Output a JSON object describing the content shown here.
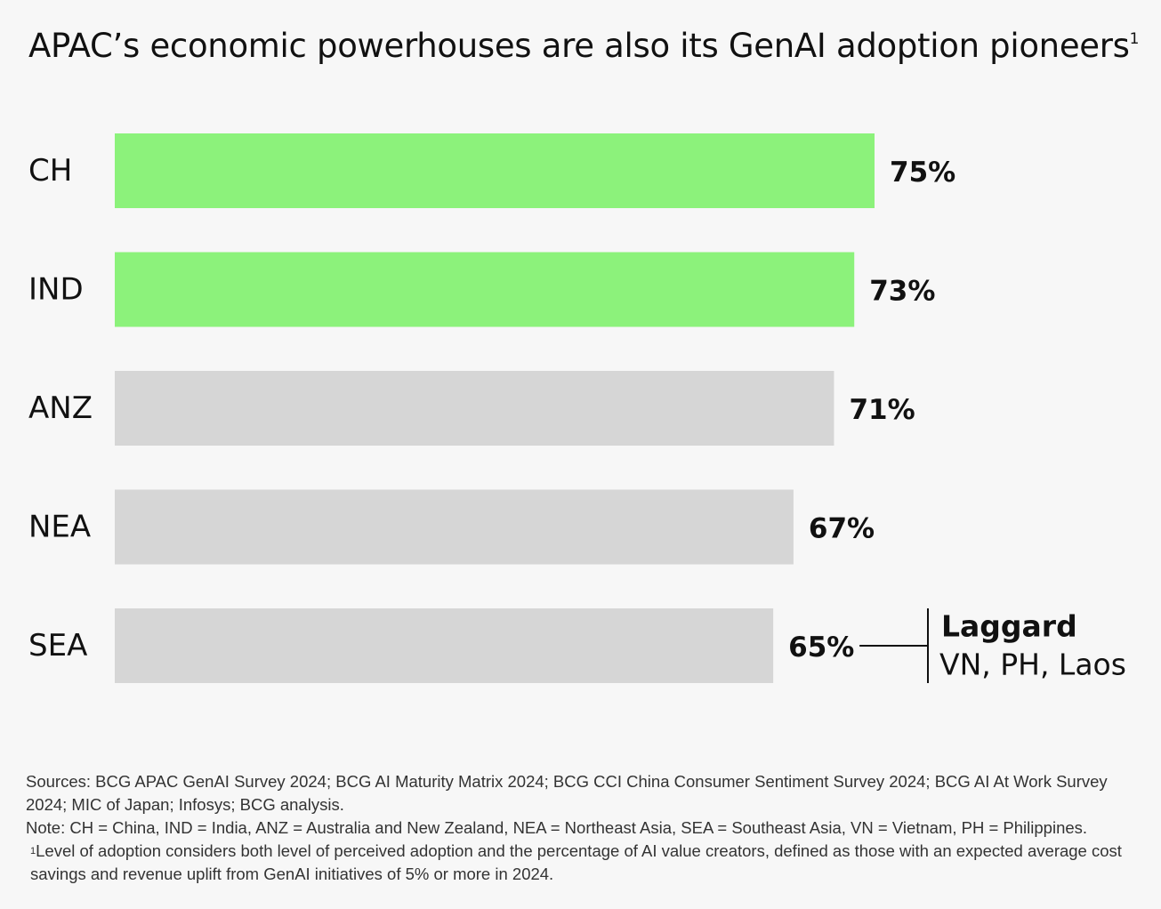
{
  "title": {
    "text": "APAC’s economic powerhouses are also its GenAI adoption pioneers",
    "footnote_ref": "1"
  },
  "chart_data": {
    "type": "bar",
    "orientation": "horizontal",
    "title": "APAC’s economic powerhouses are also its GenAI adoption pioneers",
    "categories": [
      "CH",
      "IND",
      "ANZ",
      "NEA",
      "SEA"
    ],
    "values": [
      75,
      73,
      71,
      67,
      65
    ],
    "value_labels": [
      "75%",
      "73%",
      "71%",
      "67%",
      "65%"
    ],
    "colors": [
      "#8cf27b",
      "#8cf27b",
      "#d6d6d6",
      "#d6d6d6",
      "#d6d6d6"
    ],
    "highlight_color": "#8cf27b",
    "base_color": "#d6d6d6",
    "xlim": [
      0,
      75
    ],
    "grid": false,
    "annotation": {
      "category": "SEA",
      "title": "Laggard",
      "text": "VN, PH, Laos"
    }
  },
  "footnotes": {
    "sources": "Sources: BCG APAC GenAI Survey 2024; BCG AI Maturity Matrix 2024; BCG CCI China Consumer Sentiment Survey 2024; BCG AI At Work Survey 2024; MIC of Japan; Infosys; BCG analysis.",
    "note": "Note: CH = China, IND = India, ANZ = Australia and New Zealand, NEA = Northeast Asia, SEA = Southeast Asia, VN = Vietnam, PH = Philippines.",
    "footnote_marker": "1",
    "footnote_text": "Level of adoption considers both level of perceived adoption and the percentage of AI value creators, defined as those with an expected average cost savings and revenue uplift from GenAI initiatives of 5% or more in 2024."
  }
}
